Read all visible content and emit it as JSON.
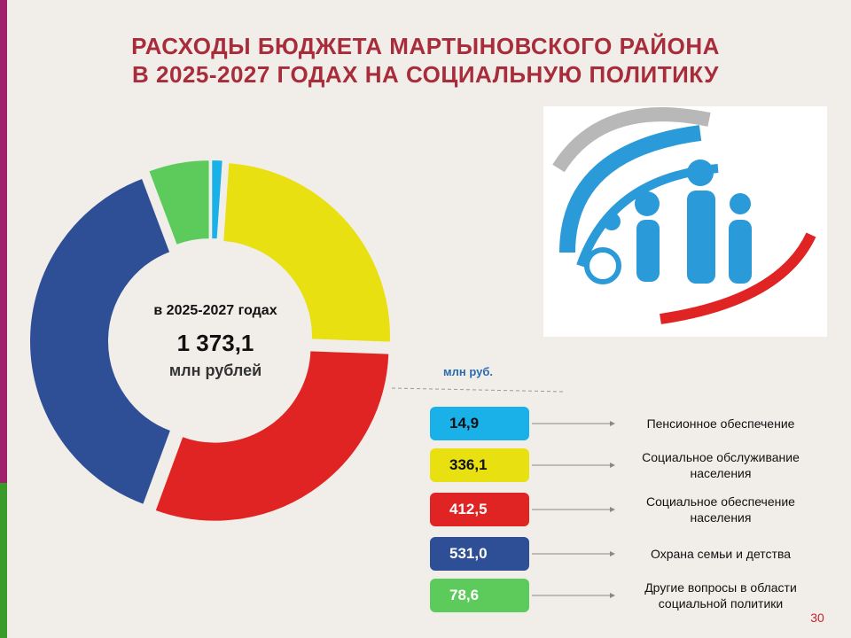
{
  "chart_data": {
    "type": "donut",
    "title": "РАСХОДЫ БЮДЖЕТА МАРТЫНОВСКОГО РАЙОНА\nВ 2025-2027 ГОДАХ НА СОЦИАЛЬНУЮ  ПОЛИТИКУ",
    "center_text": [
      "в 2025-2027 годах",
      "1 373,1",
      "млн рублей"
    ],
    "units": "млн руб.",
    "categories": [
      "Пенсионное обеспечение",
      "Социальное обслуживание населения",
      "Социальное обеспечение населения",
      "Охрана семьи и детства",
      "Другие вопросы в области социальной политики"
    ],
    "values": [
      14.9,
      336.1,
      412.5,
      531.0,
      78.6
    ],
    "value_labels": [
      "14,9",
      "336,1",
      "412,5",
      "531,0",
      "78,6"
    ],
    "colors": [
      "#1ab0e8",
      "#e8e010",
      "#e02424",
      "#2e4f96",
      "#5ccb5c"
    ],
    "page_number": "30"
  }
}
